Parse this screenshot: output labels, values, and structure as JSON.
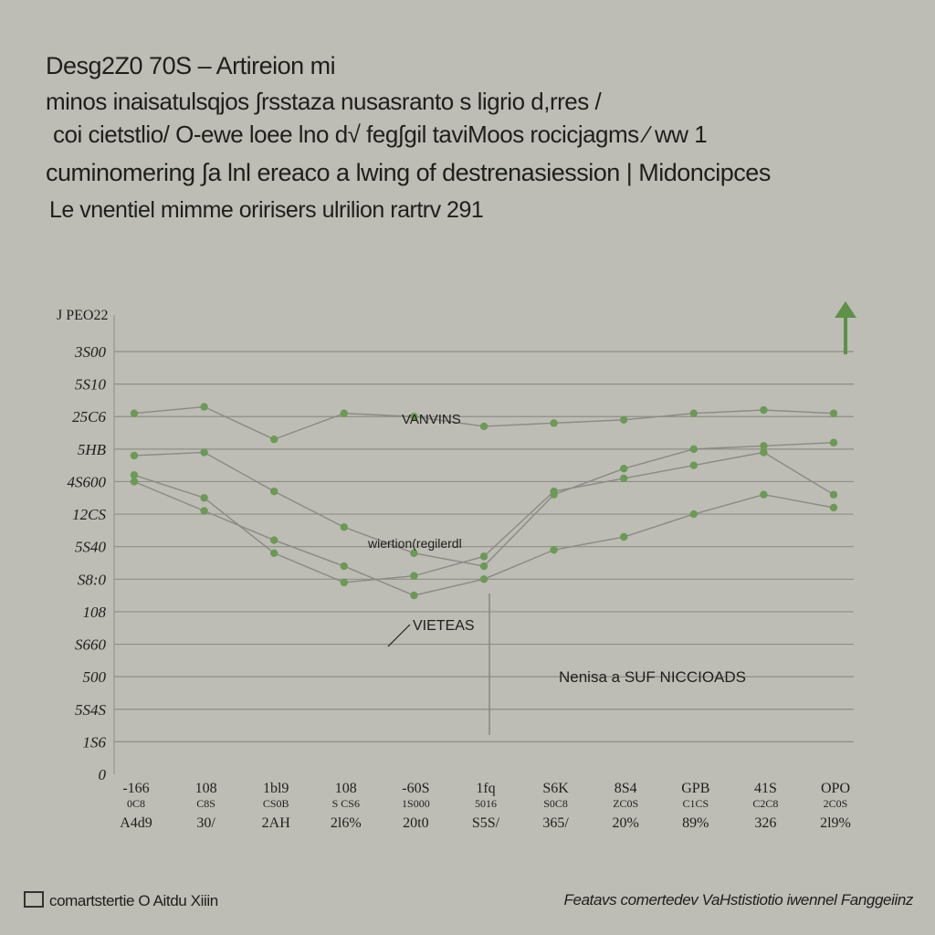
{
  "title": {
    "line1": "Desg2Z0 70S – Artireion mi",
    "line2": "minos inaisatulsqjos ∫rsstaza nusasranto s ligrio d,rres /",
    "line3": "coi cietstlio/ O-ewe loee lno d√ feg∫gil taviMoos rocicjagms ∕ ww 1",
    "line4": "cuminomering ∫a lnl ereaco a lwing of destrenasiession | Midoncipces",
    "line5": "Le vnentiel mimme oririsers ulrilion rartrv 291"
  },
  "footer": {
    "left": "comartstertie O Aitdu Xiiin",
    "right": "Featavs comertedev VaHstistiotio iwennel Fanggeiinz"
  },
  "colors": {
    "background": "#bdbcb5",
    "gridline": "#8f8e88",
    "line": "#8a8a85",
    "marker": "#6b9a54",
    "arrow": "#5e9148",
    "text": "#1f1f1c"
  },
  "chart_data": {
    "type": "line",
    "title": "",
    "xlabel": "",
    "ylabel": "",
    "y_axis_header": "J PEO22",
    "y_ticks": [
      "3S00",
      "5S10",
      "25C6",
      "5HB",
      "4S600",
      "12CS",
      "5S40",
      "S8:0",
      "108",
      "S660",
      "500",
      "5S4S",
      "1S6",
      "0"
    ],
    "x_tick_rows": {
      "row1": [
        "-166",
        "108",
        "1bl9",
        "108",
        "-60S",
        "1fq",
        "S6K",
        "8S4",
        "GPB",
        "41S",
        "OPO"
      ],
      "row2": [
        "0C8",
        "C8S",
        "CS0B",
        "S CS6",
        "1S000",
        "5016",
        "S0C8",
        "ZC0S",
        "C1CS",
        "C2C8",
        "2C0S"
      ],
      "row3": [
        "A4d9",
        "30/",
        "2AH",
        "2l6%",
        "20t0",
        "S5S/",
        "365/",
        "20%",
        "89%",
        "326",
        "2l9%"
      ]
    },
    "x": [
      0,
      1,
      2,
      3,
      4,
      5,
      6,
      7,
      8,
      9,
      10
    ],
    "ylim": [
      0,
      13
    ],
    "annotations": [
      "VANVINS",
      "wiertion(regilerdl",
      "VIETEAS",
      "Nenisa a SUF NICCIOADS"
    ],
    "series": [
      {
        "values": [
          11.1,
          11.3,
          10.3,
          11.1,
          11.0,
          10.7,
          10.8,
          10.9,
          11.1,
          11.2,
          11.1
        ]
      },
      {
        "values": [
          9.8,
          9.9,
          8.7,
          7.6,
          6.8,
          6.4,
          8.6,
          9.4,
          10.0,
          10.1,
          10.2
        ]
      },
      {
        "values": [
          9.2,
          8.5,
          6.8,
          5.9,
          6.1,
          6.7,
          8.7,
          9.1,
          9.5,
          9.9,
          8.6
        ]
      },
      {
        "values": [
          9.0,
          8.1,
          7.2,
          6.4,
          5.5,
          6.0,
          6.9,
          7.3,
          8.0,
          8.6,
          8.2
        ]
      }
    ]
  }
}
